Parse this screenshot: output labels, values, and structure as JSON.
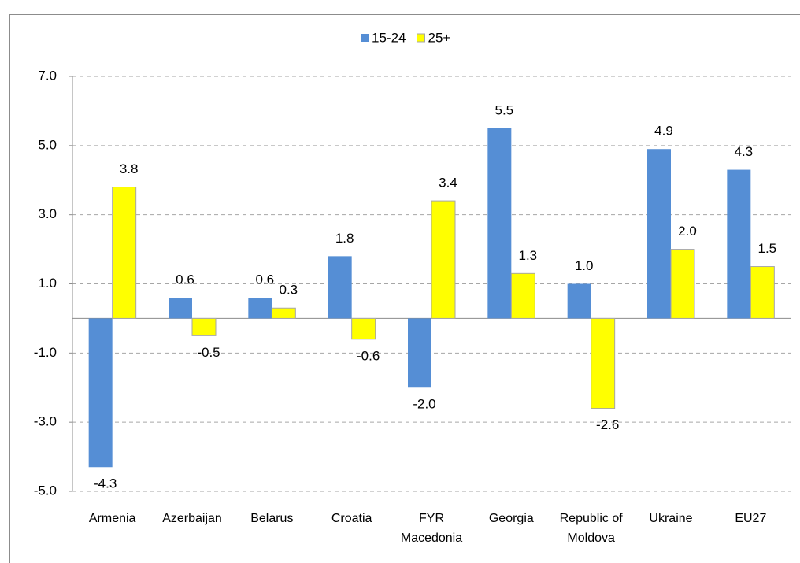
{
  "chart_data": {
    "type": "bar",
    "categories": [
      "Armenia",
      "Azerbaijan",
      "Belarus",
      "Croatia",
      "FYR Macedonia",
      "Georgia",
      "Republic of Moldova",
      "Ukraine",
      "EU27"
    ],
    "series": [
      {
        "name": "15-24",
        "color": "#558ed5",
        "values": [
          -4.3,
          0.6,
          0.6,
          1.8,
          -2.0,
          5.5,
          1.0,
          4.9,
          4.3
        ],
        "value_labels": [
          "-4.3",
          "0.6",
          "0.6",
          "1.8",
          "-2.0",
          "5.5",
          "1.0",
          "4.9",
          "4.3"
        ]
      },
      {
        "name": "25+",
        "color": "#ffff00",
        "values": [
          3.8,
          -0.5,
          0.3,
          -0.6,
          3.4,
          1.3,
          -2.6,
          2.0,
          1.5
        ],
        "value_labels": [
          "3.8",
          "-0.5",
          "0.3",
          "-0.6",
          "3.4",
          "1.3",
          "-2.6",
          "2.0",
          "1.5"
        ]
      }
    ],
    "ylim": [
      -5,
      7
    ],
    "yticks": [
      {
        "value": -5,
        "label": "-5.0"
      },
      {
        "value": -3,
        "label": "-3.0"
      },
      {
        "value": -1,
        "label": "-1.0"
      },
      {
        "value": 1,
        "label": "1.0"
      },
      {
        "value": 3,
        "label": "3.0"
      },
      {
        "value": 5,
        "label": "5.0"
      },
      {
        "value": 7,
        "label": "7.0"
      }
    ],
    "grid": true,
    "legend": "top"
  }
}
